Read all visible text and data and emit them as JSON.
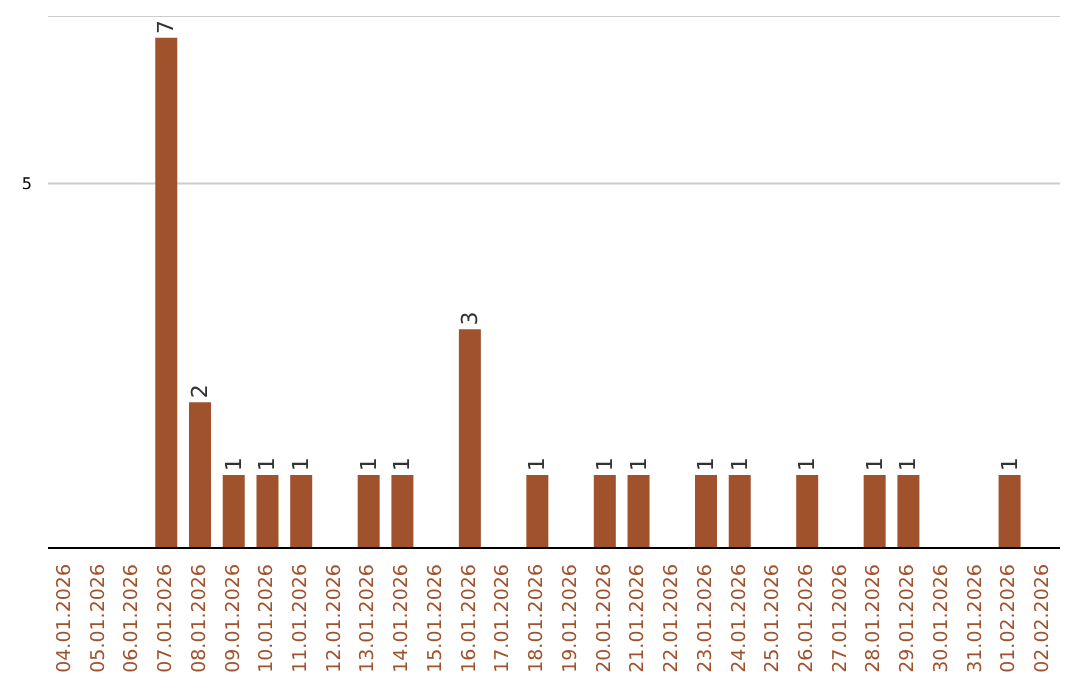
{
  "chart_data": {
    "type": "bar",
    "categories": [
      "04.01.2026",
      "05.01.2026",
      "06.01.2026",
      "07.01.2026",
      "08.01.2026",
      "09.01.2026",
      "10.01.2026",
      "11.01.2026",
      "12.01.2026",
      "13.01.2026",
      "14.01.2026",
      "15.01.2026",
      "16.01.2026",
      "17.01.2026",
      "18.01.2026",
      "19.01.2026",
      "20.01.2026",
      "21.01.2026",
      "22.01.2026",
      "23.01.2026",
      "24.01.2026",
      "25.01.2026",
      "26.01.2026",
      "27.01.2026",
      "28.01.2026",
      "29.01.2026",
      "30.01.2026",
      "31.01.2026",
      "01.02.2026",
      "02.02.2026"
    ],
    "values": [
      0,
      0,
      0,
      7,
      2,
      1,
      1,
      1,
      0,
      1,
      1,
      0,
      3,
      0,
      1,
      0,
      1,
      1,
      0,
      1,
      1,
      0,
      1,
      0,
      1,
      1,
      0,
      0,
      1,
      0
    ],
    "value_labels": [
      null,
      null,
      null,
      "7",
      "2",
      "1",
      "1",
      "1",
      null,
      "1",
      "1",
      null,
      "3",
      null,
      "1",
      null,
      "1",
      "1",
      null,
      "1",
      "1",
      null,
      "1",
      null,
      "1",
      "1",
      null,
      null,
      "1",
      null
    ],
    "color": "#a0522d",
    "ylim": [
      0,
      7.3
    ],
    "yticks": [
      5
    ],
    "grid": "y",
    "legend": false
  }
}
